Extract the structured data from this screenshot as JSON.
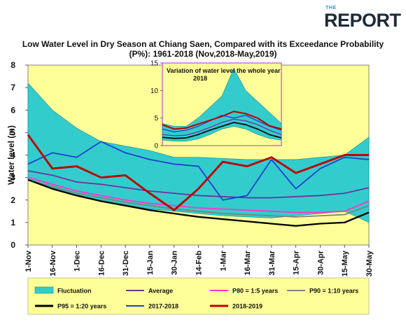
{
  "logo": {
    "top": "THE",
    "word": "REPORT"
  },
  "chart_data": [
    {
      "type": "area",
      "title": "Low Water Level in Dry Season at Chiang Saen, Compared with its Exceedance Probability (P%): 1961-2018 (Nov,2018-May,2019)",
      "ylabel": "Water level (m)",
      "xlabel": "",
      "ylim": [
        0,
        8
      ],
      "yticks": [
        0,
        1,
        2,
        3,
        4,
        5,
        6,
        7,
        8
      ],
      "x": [
        "1-Nov",
        "16-Nov",
        "1-Dec",
        "16-Dec",
        "31-Dec",
        "15-Jan",
        "30-Jan",
        "14-Feb",
        "1-Mar",
        "16-Mar",
        "31-Mar",
        "15-Apr",
        "30-Apr",
        "15-May",
        "30-May"
      ],
      "background_color": "#ffff99",
      "grid": false,
      "legend_position": "bottom",
      "series": [
        {
          "name": "Fluctuation",
          "type": "band",
          "color": "#33cccc",
          "upper": [
            7.2,
            6.0,
            5.2,
            4.6,
            4.4,
            4.2,
            3.9,
            3.9,
            3.85,
            3.8,
            3.8,
            3.8,
            3.9,
            4.0,
            4.8
          ],
          "lower": [
            2.9,
            2.5,
            2.2,
            2.0,
            1.8,
            1.6,
            1.5,
            1.4,
            1.3,
            1.25,
            1.2,
            1.3,
            1.4,
            1.5,
            1.0
          ]
        },
        {
          "name": "Average",
          "color": "#7030a0",
          "values": [
            3.3,
            3.1,
            2.8,
            2.7,
            2.55,
            2.4,
            2.3,
            2.2,
            2.15,
            2.1,
            2.1,
            2.15,
            2.2,
            2.3,
            2.55
          ]
        },
        {
          "name": "P80 = 1:5 years",
          "color": "#ff33cc",
          "values": [
            3.0,
            2.7,
            2.4,
            2.2,
            2.0,
            1.85,
            1.75,
            1.65,
            1.6,
            1.55,
            1.5,
            1.45,
            1.45,
            1.5,
            1.95
          ]
        },
        {
          "name": "P90 = 1:10 years",
          "color": "#808080",
          "values": [
            2.9,
            2.6,
            2.3,
            2.1,
            1.9,
            1.75,
            1.6,
            1.5,
            1.4,
            1.35,
            1.3,
            1.25,
            1.3,
            1.35,
            1.75
          ]
        },
        {
          "name": "P95 = 1:20 years",
          "color": "#000000",
          "values": [
            2.9,
            2.5,
            2.2,
            1.95,
            1.75,
            1.55,
            1.4,
            1.25,
            1.15,
            1.05,
            0.95,
            0.85,
            0.95,
            1.0,
            1.45
          ]
        },
        {
          "name": "2017-2018",
          "color": "#1f3fd0",
          "values": [
            3.6,
            4.1,
            3.9,
            4.6,
            4.1,
            3.8,
            3.6,
            3.5,
            2.0,
            2.2,
            3.8,
            2.5,
            3.4,
            3.9,
            3.8
          ]
        },
        {
          "name": "2018-2019",
          "color": "#c00000",
          "values": [
            4.9,
            3.4,
            3.5,
            3.0,
            3.1,
            2.3,
            1.55,
            2.5,
            3.7,
            3.5,
            3.9,
            3.2,
            3.6,
            4.0,
            4.0
          ]
        }
      ]
    },
    {
      "type": "area",
      "title": "Variation of water level the whole year 2018",
      "ylim": [
        0,
        15
      ],
      "yticks": [
        0,
        5,
        10,
        15
      ],
      "background_color": "#ffff99",
      "series": [
        {
          "name": "Fluctuation",
          "type": "band",
          "color": "#33cccc",
          "upper": [
            4,
            3.5,
            3.5,
            5,
            7,
            9,
            14,
            10,
            8,
            6,
            4
          ],
          "lower": [
            1,
            0.8,
            0.8,
            1.2,
            2,
            3,
            3.5,
            3,
            2,
            1.3,
            1
          ]
        },
        {
          "name": "Average",
          "color": "#7030a0",
          "values": [
            2,
            1.8,
            1.9,
            2.5,
            3.3,
            4.2,
            4.8,
            4.5,
            3.8,
            2.8,
            2
          ]
        },
        {
          "name": "P95 = 1:20 years",
          "color": "#000000",
          "values": [
            1.5,
            1.3,
            1.4,
            2,
            2.8,
            3.5,
            4.2,
            3.8,
            3,
            2,
            1.4
          ]
        },
        {
          "name": "2017-2018",
          "color": "#1f3fd0",
          "values": [
            3,
            2.5,
            2.8,
            3.5,
            4.5,
            5.5,
            5,
            5.5,
            4.5,
            3.5,
            2.8
          ]
        },
        {
          "name": "2018-2019",
          "color": "#c00000",
          "values": [
            3.8,
            3,
            3.2,
            3.9,
            4.6,
            5.3,
            6.2,
            5.8,
            5.0,
            3.6,
            3.0
          ]
        }
      ]
    }
  ]
}
